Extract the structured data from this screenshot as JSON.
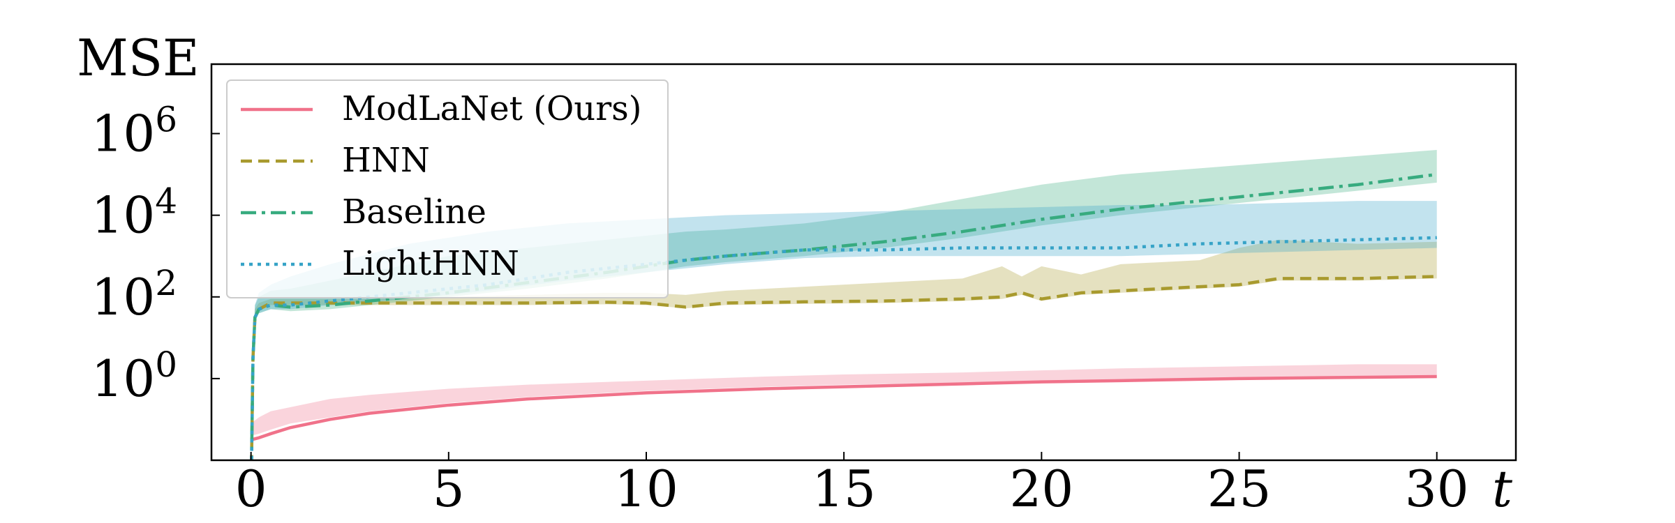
{
  "chart_data": {
    "type": "line",
    "title": "",
    "xlabel": "t",
    "ylabel": "MSE",
    "xlim": [
      -1,
      32
    ],
    "ylim_log10": [
      -2,
      7.7
    ],
    "yscale": "log",
    "x_ticks": [
      0,
      5,
      10,
      15,
      20,
      25,
      30
    ],
    "x_tick_labels": [
      "0",
      "5",
      "10",
      "15",
      "20",
      "25",
      "30"
    ],
    "y_ticks_log10": [
      0,
      2,
      4,
      6
    ],
    "y_tick_base": "10",
    "y_tick_exponents": [
      "0",
      "2",
      "4",
      "6"
    ],
    "legend_position": "upper-left",
    "grid": false,
    "series": [
      {
        "name": "ModLaNet (Ours)",
        "color": "#f0728a",
        "line_style": "solid",
        "x": [
          0,
          0.2,
          0.5,
          1,
          2,
          3,
          5,
          7,
          10,
          13,
          15,
          18,
          20,
          22,
          25,
          28,
          30
        ],
        "log10_mean": [
          -1.5,
          -1.45,
          -1.35,
          -1.2,
          -1.0,
          -0.85,
          -0.65,
          -0.5,
          -0.35,
          -0.25,
          -0.2,
          -0.13,
          -0.08,
          -0.05,
          0.0,
          0.03,
          0.05
        ],
        "log10_band": [
          [
            -1.4,
            -1.1
          ],
          [
            -1.35,
            -0.95
          ],
          [
            -1.25,
            -0.8
          ],
          [
            -1.1,
            -0.7
          ],
          [
            -0.95,
            -0.5
          ],
          [
            -0.8,
            -0.4
          ],
          [
            -0.6,
            -0.25
          ],
          [
            -0.45,
            -0.15
          ],
          [
            -0.3,
            -0.05
          ],
          [
            -0.2,
            0.05
          ],
          [
            -0.15,
            0.1
          ],
          [
            -0.1,
            0.15
          ],
          [
            -0.05,
            0.2
          ],
          [
            -0.02,
            0.25
          ],
          [
            0.02,
            0.3
          ],
          [
            0.05,
            0.35
          ],
          [
            0.07,
            0.35
          ]
        ]
      },
      {
        "name": "HNN",
        "color": "#a89a2e",
        "line_style": "dashed",
        "x": [
          0,
          0.05,
          0.1,
          0.2,
          0.5,
          1,
          2,
          3,
          5,
          7,
          9,
          10,
          11,
          12,
          14,
          16,
          18,
          19,
          19.5,
          20,
          21,
          22,
          24,
          25,
          26,
          28,
          30
        ],
        "log10_mean": [
          -3,
          0.5,
          1.5,
          1.7,
          1.85,
          1.85,
          1.85,
          1.85,
          1.85,
          1.85,
          1.87,
          1.85,
          1.75,
          1.85,
          1.88,
          1.9,
          1.95,
          2.0,
          2.1,
          1.95,
          2.1,
          2.15,
          2.25,
          2.3,
          2.45,
          2.45,
          2.5
        ],
        "log10_band": [
          [
            -3,
            -3
          ],
          [
            0.4,
            0.6
          ],
          [
            1.4,
            1.7
          ],
          [
            1.65,
            1.85
          ],
          [
            1.8,
            1.95
          ],
          [
            1.8,
            1.95
          ],
          [
            1.8,
            1.95
          ],
          [
            1.8,
            1.95
          ],
          [
            1.8,
            2.0
          ],
          [
            1.8,
            2.05
          ],
          [
            1.82,
            2.1
          ],
          [
            1.8,
            2.1
          ],
          [
            1.72,
            2.05
          ],
          [
            1.8,
            2.15
          ],
          [
            1.83,
            2.25
          ],
          [
            1.85,
            2.35
          ],
          [
            1.9,
            2.45
          ],
          [
            1.95,
            2.75
          ],
          [
            2.05,
            2.5
          ],
          [
            1.9,
            2.75
          ],
          [
            2.05,
            2.55
          ],
          [
            2.1,
            2.8
          ],
          [
            2.2,
            2.9
          ],
          [
            2.25,
            3.2
          ],
          [
            2.4,
            3.4
          ],
          [
            2.4,
            3.3
          ],
          [
            2.45,
            3.35
          ]
        ]
      },
      {
        "name": "Baseline",
        "color": "#37ab7f",
        "line_style": "dashdot",
        "x": [
          0,
          0.05,
          0.1,
          0.2,
          0.5,
          1,
          2,
          3,
          5,
          7,
          9,
          10,
          11,
          12,
          14,
          16,
          18,
          20,
          22,
          24,
          26,
          28,
          30
        ],
        "log10_mean": [
          -3,
          0.5,
          1.5,
          1.7,
          1.8,
          1.75,
          1.8,
          1.9,
          2.1,
          2.35,
          2.6,
          2.75,
          2.9,
          3.0,
          3.15,
          3.35,
          3.6,
          3.9,
          4.15,
          4.35,
          4.55,
          4.75,
          5.0
        ],
        "log10_band": [
          [
            -3,
            -3
          ],
          [
            0.4,
            0.6
          ],
          [
            1.4,
            1.8
          ],
          [
            1.6,
            2.0
          ],
          [
            1.7,
            2.15
          ],
          [
            1.65,
            2.2
          ],
          [
            1.7,
            2.4
          ],
          [
            1.8,
            2.6
          ],
          [
            2.0,
            3.0
          ],
          [
            2.2,
            3.2
          ],
          [
            2.45,
            3.4
          ],
          [
            2.6,
            3.5
          ],
          [
            2.75,
            3.6
          ],
          [
            2.85,
            3.65
          ],
          [
            3.0,
            3.8
          ],
          [
            3.2,
            4.05
          ],
          [
            3.45,
            4.4
          ],
          [
            3.75,
            4.75
          ],
          [
            4.0,
            5.0
          ],
          [
            4.2,
            5.15
          ],
          [
            4.4,
            5.3
          ],
          [
            4.6,
            5.45
          ],
          [
            4.8,
            5.6
          ]
        ]
      },
      {
        "name": "LightHNN",
        "color": "#36a3c7",
        "line_style": "dotted",
        "x": [
          0,
          0.05,
          0.1,
          0.2,
          0.5,
          1,
          2,
          4,
          6,
          8,
          10,
          12,
          14,
          16,
          18,
          20,
          22,
          24,
          26,
          28,
          30
        ],
        "log10_mean": [
          -3,
          0.5,
          1.5,
          1.7,
          1.8,
          1.8,
          1.9,
          2.1,
          2.3,
          2.6,
          2.8,
          3.0,
          3.15,
          3.15,
          3.2,
          3.2,
          3.2,
          3.3,
          3.35,
          3.4,
          3.45
        ],
        "log10_band": [
          [
            -3,
            -3
          ],
          [
            0.4,
            0.6
          ],
          [
            1.4,
            1.8
          ],
          [
            1.6,
            2.1
          ],
          [
            1.7,
            2.3
          ],
          [
            1.7,
            2.5
          ],
          [
            1.8,
            2.8
          ],
          [
            1.95,
            3.3
          ],
          [
            2.15,
            3.6
          ],
          [
            2.4,
            3.8
          ],
          [
            2.6,
            3.9
          ],
          [
            2.8,
            4.0
          ],
          [
            2.95,
            4.05
          ],
          [
            3.0,
            4.1
          ],
          [
            3.0,
            4.15
          ],
          [
            3.0,
            4.2
          ],
          [
            3.0,
            4.25
          ],
          [
            3.05,
            4.25
          ],
          [
            3.1,
            4.3
          ],
          [
            3.15,
            4.35
          ],
          [
            3.2,
            4.35
          ]
        ]
      }
    ]
  }
}
